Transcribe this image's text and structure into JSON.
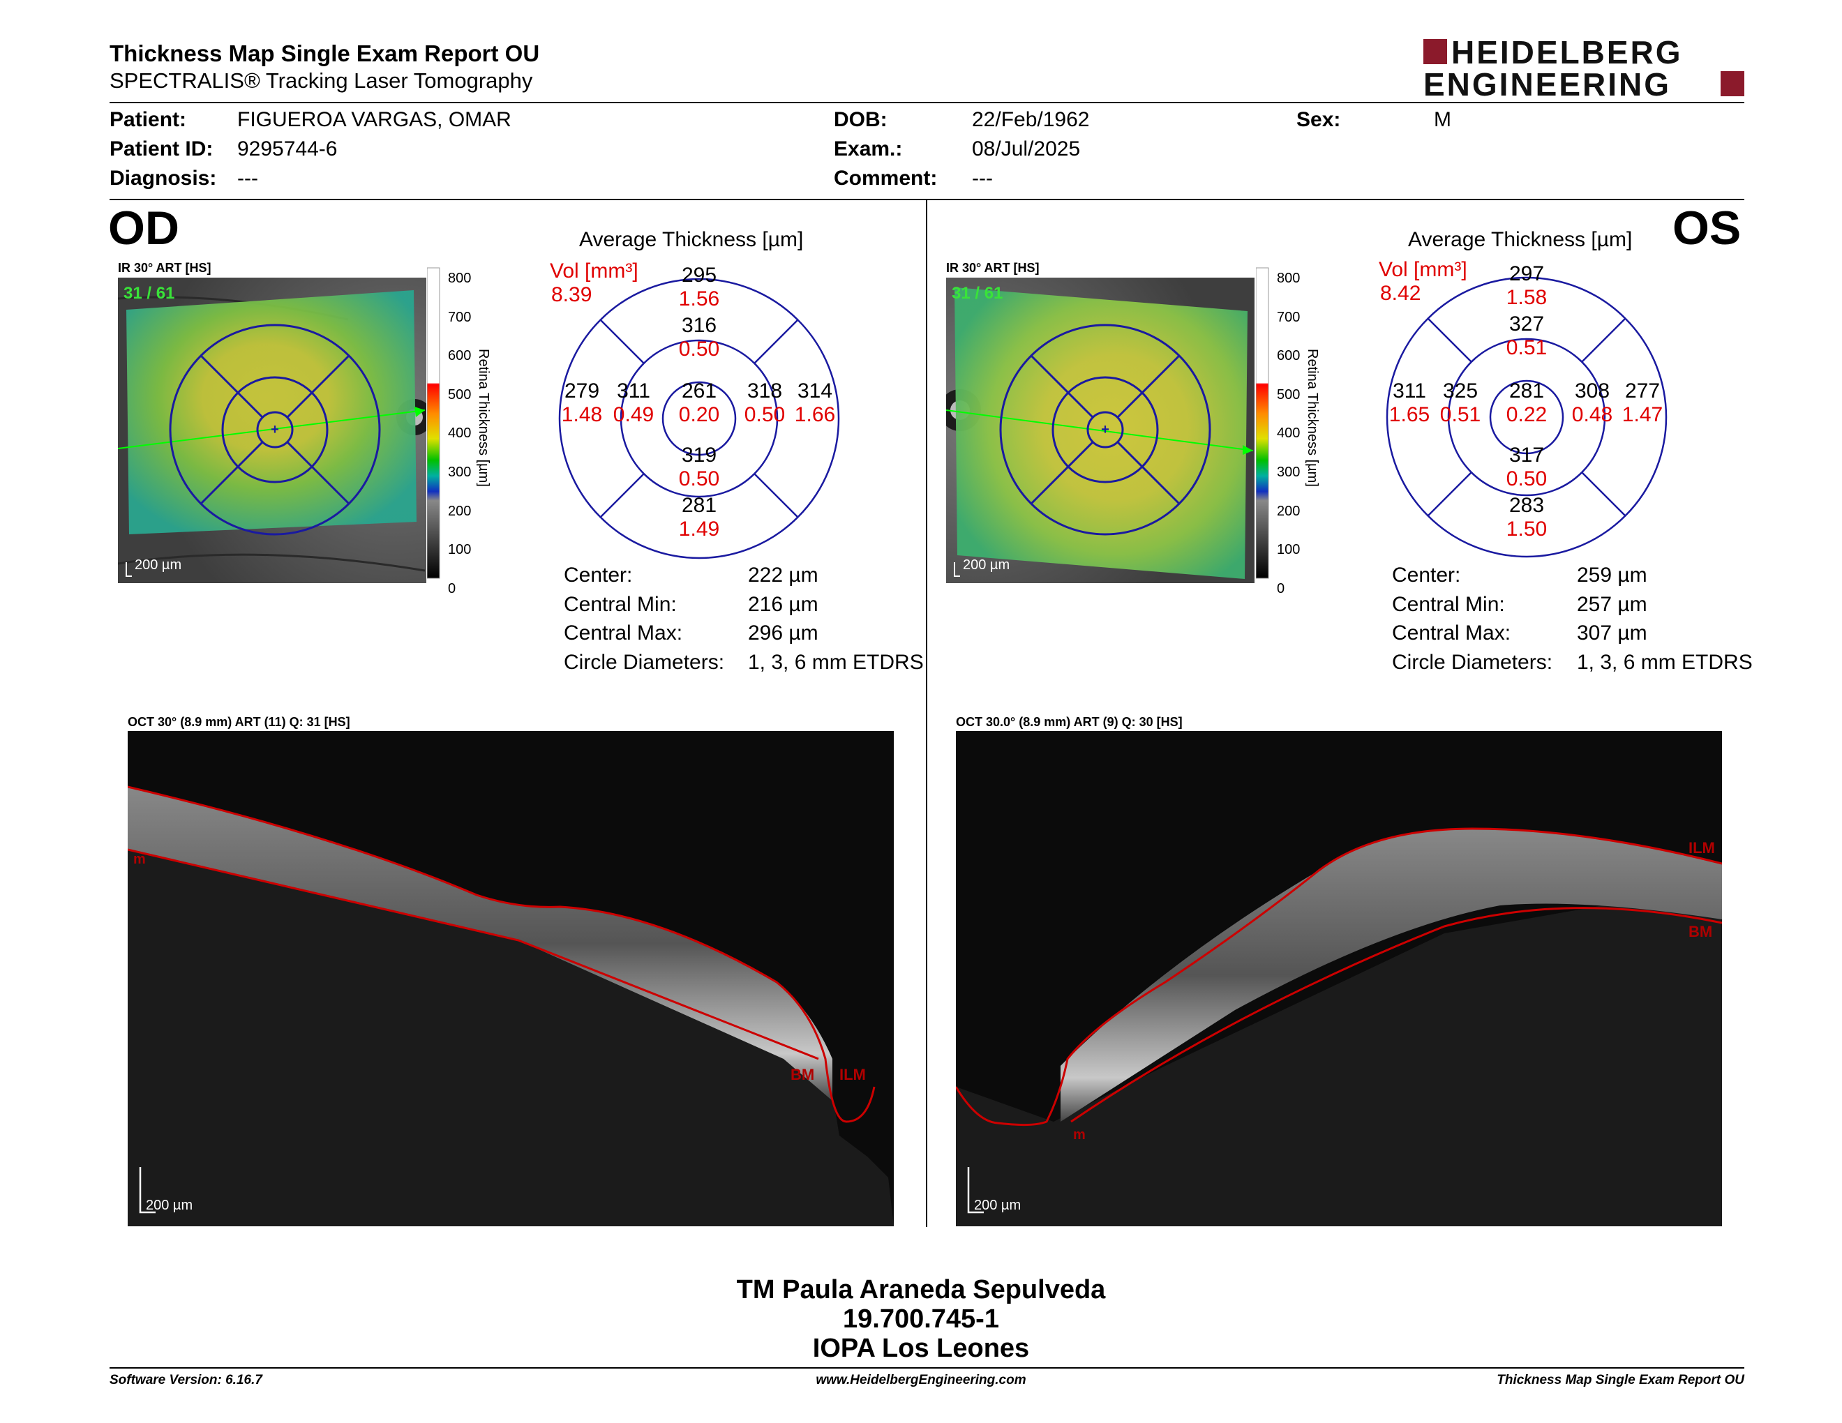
{
  "header": {
    "title": "Thickness Map Single Exam Report OU",
    "subtitle": "SPECTRALIS® Tracking Laser Tomography",
    "logo_line1": "HEIDELBERG",
    "logo_line2": "ENGINEERING"
  },
  "patient": {
    "patient_label": "Patient:",
    "patient_value": "FIGUEROA VARGAS, OMAR",
    "id_label": "Patient ID:",
    "id_value": "9295744-6",
    "diagnosis_label": "Diagnosis:",
    "diagnosis_value": "---",
    "dob_label": "DOB:",
    "dob_value": "22/Feb/1962",
    "exam_label": "Exam.:",
    "exam_value": "08/Jul/2025",
    "comment_label": "Comment:",
    "comment_value": "---",
    "sex_label": "Sex:",
    "sex_value": "M"
  },
  "scale": {
    "ticks": [
      "800",
      "700",
      "600",
      "500",
      "400",
      "300",
      "200",
      "100",
      "0"
    ],
    "label": "Retina Thickness [µm]"
  },
  "od": {
    "eye": "OD",
    "ir_label": "IR 30° ART [HS]",
    "ir_counter": "31 / 61",
    "ir_scalebar": "200 µm",
    "avg_title": "Average Thickness [µm]",
    "vol_label": "Vol [mm³]",
    "vol_total": "8.39",
    "sectors": {
      "outer_sup": "295",
      "outer_sup_vol": "1.56",
      "inner_sup": "316",
      "inner_sup_vol": "0.50",
      "outer_temp": "279",
      "outer_temp_vol": "1.48",
      "inner_temp": "311",
      "inner_temp_vol": "0.49",
      "center": "261",
      "center_vol": "0.20",
      "inner_nas": "318",
      "inner_nas_vol": "0.50",
      "outer_nas": "314",
      "outer_nas_vol": "1.66",
      "inner_inf": "319",
      "inner_inf_vol": "0.50",
      "outer_inf": "281",
      "outer_inf_vol": "1.49"
    },
    "stats": {
      "center_label": "Center:",
      "center_value": "222 µm",
      "min_label": "Central Min:",
      "min_value": "216 µm",
      "max_label": "Central Max:",
      "max_value": "296 µm",
      "diam_label": "Circle Diameters:",
      "diam_value": "1, 3, 6 mm ETDRS"
    },
    "oct_label": "OCT 30° (8.9 mm) ART (11) Q: 31 [HS]",
    "oct_scalebar": "200 µm",
    "tag_bm": "BM",
    "tag_ilm": "ILM",
    "tag_m": "m"
  },
  "os": {
    "eye": "OS",
    "ir_label": "IR 30° ART [HS]",
    "ir_counter": "31 / 61",
    "ir_scalebar": "200 µm",
    "avg_title": "Average Thickness [µm]",
    "vol_label": "Vol [mm³]",
    "vol_total": "8.42",
    "sectors": {
      "outer_sup": "297",
      "outer_sup_vol": "1.58",
      "inner_sup": "327",
      "inner_sup_vol": "0.51",
      "outer_temp": "311",
      "outer_temp_vol": "1.65",
      "inner_temp": "325",
      "inner_temp_vol": "0.51",
      "center": "281",
      "center_vol": "0.22",
      "inner_nas": "308",
      "inner_nas_vol": "0.48",
      "outer_nas": "277",
      "outer_nas_vol": "1.47",
      "inner_inf": "317",
      "inner_inf_vol": "0.50",
      "outer_inf": "283",
      "outer_inf_vol": "1.50"
    },
    "stats": {
      "center_label": "Center:",
      "center_value": "259 µm",
      "min_label": "Central Min:",
      "min_value": "257 µm",
      "max_label": "Central Max:",
      "max_value": "307 µm",
      "diam_label": "Circle Diameters:",
      "diam_value": "1, 3, 6 mm ETDRS"
    },
    "oct_label": "OCT 30.0° (8.9 mm) ART (9) Q: 30 [HS]",
    "oct_scalebar": "200 µm",
    "tag_bm": "BM",
    "tag_ilm": "ILM",
    "tag_m": "m"
  },
  "signature": {
    "name": "TM Paula Araneda Sepulveda",
    "rut": "19.700.745-1",
    "place": "IOPA Los Leones"
  },
  "footer": {
    "software": "Software Version: 6.16.7",
    "website": "www.HeidelbergEngineering.com",
    "report": "Thickness Map Single Exam Report OU"
  },
  "colors": {
    "blue_grid": "#1a1aa0",
    "red_text": "#e00000",
    "logo_red": "#8b1a2b",
    "green_text": "#39e339"
  }
}
